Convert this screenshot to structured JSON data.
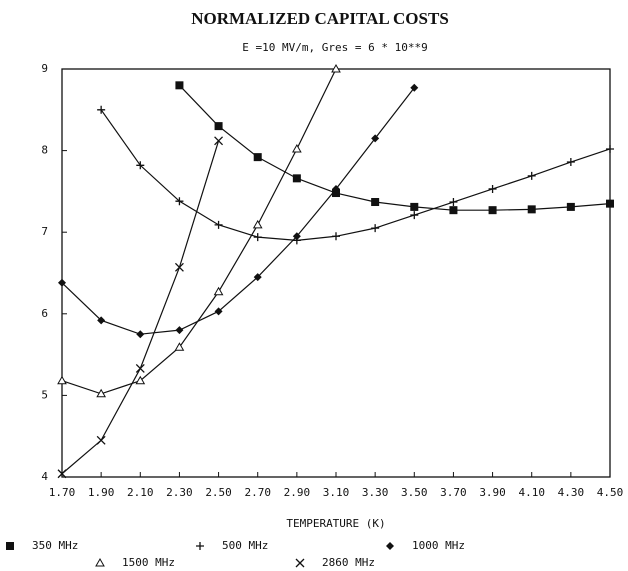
{
  "chart_data": {
    "type": "line",
    "title": "NORMALIZED CAPITAL COSTS",
    "subtitle": "E =10 MV/m, Gres = 6 * 10**9",
    "x_label": "TEMPERATURE (K)",
    "x": [
      1.7,
      1.9,
      2.1,
      2.3,
      2.5,
      2.7,
      2.9,
      3.1,
      3.3,
      3.5,
      3.7,
      3.9,
      4.1,
      4.3,
      4.5
    ],
    "xlim": [
      1.7,
      4.5
    ],
    "xticks": [
      {
        "value": 1.7,
        "label": "1.70"
      },
      {
        "value": 1.9,
        "label": "1.90"
      },
      {
        "value": 2.1,
        "label": "2.10"
      },
      {
        "value": 2.3,
        "label": "2.30"
      },
      {
        "value": 2.5,
        "label": "2.50"
      },
      {
        "value": 2.7,
        "label": "2.70"
      },
      {
        "value": 2.9,
        "label": "2.90"
      },
      {
        "value": 3.1,
        "label": "3.10"
      },
      {
        "value": 3.3,
        "label": "3.30"
      },
      {
        "value": 3.5,
        "label": "3.50"
      },
      {
        "value": 3.7,
        "label": "3.70"
      },
      {
        "value": 3.9,
        "label": "3.90"
      },
      {
        "value": 4.1,
        "label": "4.10"
      },
      {
        "value": 4.3,
        "label": "4.30"
      },
      {
        "value": 4.5,
        "label": "4.50"
      }
    ],
    "ylim": [
      4,
      9
    ],
    "yticks": [
      4,
      5,
      6,
      7,
      8,
      9
    ],
    "series": [
      {
        "name": "350 MHz",
        "color": "#111111",
        "marker": "square",
        "values": [
          null,
          null,
          null,
          8.8,
          8.3,
          7.92,
          7.66,
          7.48,
          7.37,
          7.31,
          7.27,
          7.27,
          7.28,
          7.31,
          7.35
        ]
      },
      {
        "name": "500 MHz",
        "color": "#111111",
        "marker": "plus",
        "values": [
          null,
          8.5,
          7.82,
          7.38,
          7.09,
          6.94,
          6.9,
          6.95,
          7.05,
          7.21,
          7.37,
          7.53,
          7.69,
          7.86,
          8.02
        ]
      },
      {
        "name": "1000 MHz",
        "color": "#111111",
        "marker": "diamond",
        "values": [
          6.38,
          5.92,
          5.75,
          5.8,
          6.03,
          6.45,
          6.95,
          7.53,
          8.15,
          8.77,
          null,
          null,
          null,
          null,
          null
        ]
      },
      {
        "name": "1500 MHz",
        "color": "#111111",
        "marker": "triangle",
        "values": [
          5.18,
          5.02,
          5.18,
          5.59,
          6.27,
          7.09,
          8.02,
          9.0,
          null,
          null,
          null,
          null,
          null,
          null,
          null
        ]
      },
      {
        "name": "2860 MHz",
        "color": "#111111",
        "marker": "x",
        "values": [
          4.04,
          4.45,
          5.33,
          6.57,
          8.12,
          null,
          null,
          null,
          null,
          null,
          null,
          null,
          null,
          null,
          null
        ]
      }
    ]
  }
}
